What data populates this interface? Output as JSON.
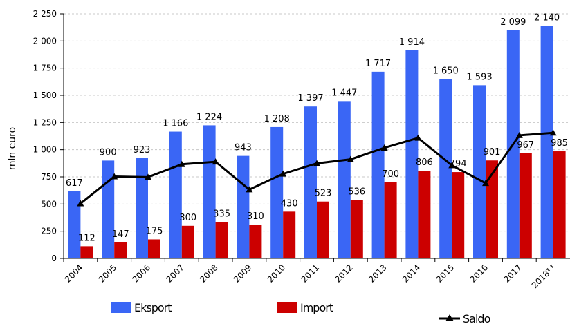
{
  "chart_data": {
    "type": "bar",
    "y_axis_label": "mln euro",
    "categories": [
      "2004",
      "2005",
      "2006",
      "2007",
      "2008",
      "2009",
      "2010",
      "2011",
      "2012",
      "2013",
      "2014",
      "2015",
      "2016",
      "2017",
      "2018**"
    ],
    "series": [
      {
        "name": "Eksport",
        "color": "#3a66f5",
        "values": [
          617,
          900,
          923,
          1166,
          1224,
          943,
          1208,
          1397,
          1447,
          1717,
          1914,
          1650,
          1593,
          2099,
          2140
        ],
        "value_labels": [
          "617",
          "900",
          "923",
          "1 166",
          "1 224",
          "943",
          "1 208",
          "1 397",
          "1 447",
          "1 717",
          "1 914",
          "1 650",
          "1 593",
          "2 099",
          "2 140"
        ]
      },
      {
        "name": "Import",
        "color": "#cc0000",
        "values": [
          112,
          147,
          175,
          300,
          335,
          310,
          430,
          523,
          536,
          700,
          806,
          794,
          901,
          967,
          985
        ]
      },
      {
        "name": "Saldo",
        "color": "#000000",
        "type": "line",
        "values": [
          505,
          753,
          748,
          866,
          889,
          633,
          778,
          874,
          911,
          1017,
          1108,
          856,
          692,
          1132,
          1155
        ]
      }
    ],
    "ylim": [
      0,
      2250
    ],
    "yticks": [
      0,
      250,
      500,
      750,
      {
        "value": 1000,
        "label": "1 000"
      },
      {
        "value": 1250,
        "label": "1 250"
      },
      {
        "value": 1500,
        "label": "1 500"
      },
      {
        "value": 1750,
        "label": "1 750"
      },
      {
        "value": 2000,
        "label": "2 000"
      },
      {
        "value": 2250,
        "label": "2 250"
      }
    ],
    "grid": true
  }
}
